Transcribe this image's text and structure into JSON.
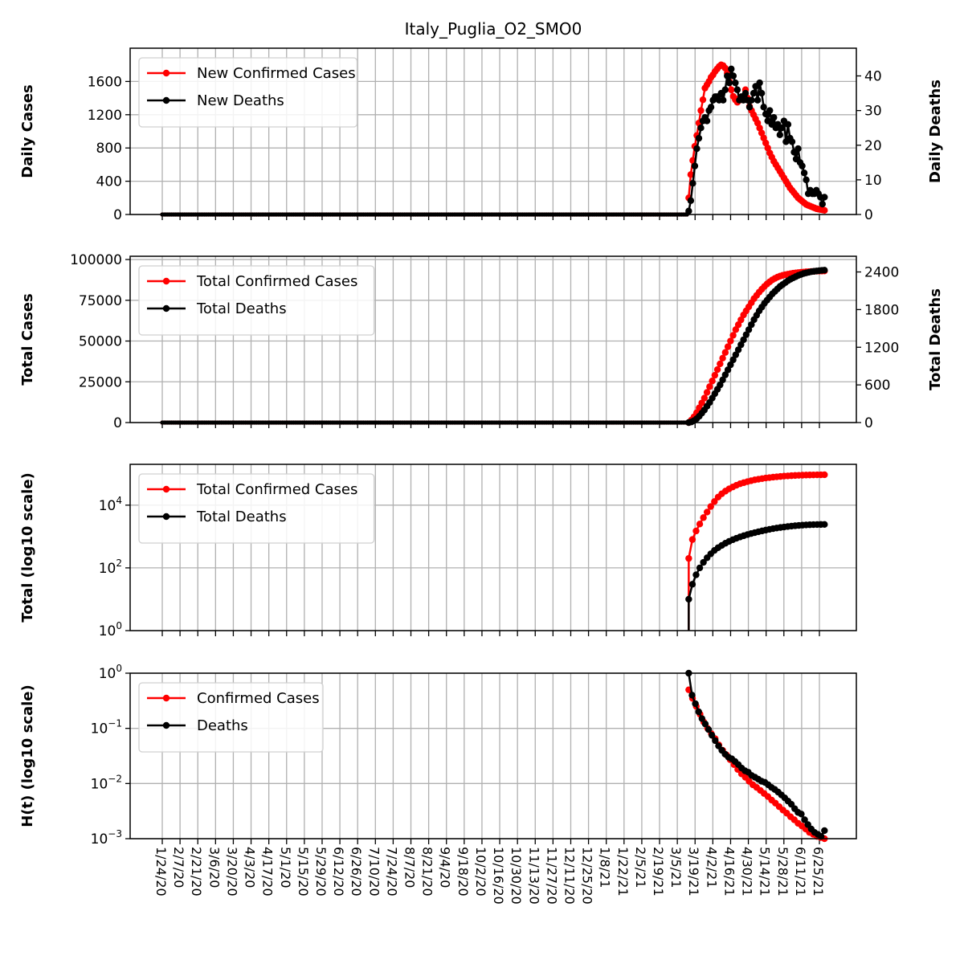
{
  "chart_data": {
    "type": "line",
    "title": "Italy_Puglia_O2_SMO0",
    "x_tick_labels": [
      "1/24/20",
      "2/7/20",
      "2/21/20",
      "3/6/20",
      "3/20/20",
      "4/3/20",
      "4/17/20",
      "5/1/20",
      "5/15/20",
      "5/29/20",
      "6/12/20",
      "6/26/20",
      "7/10/20",
      "7/24/20",
      "8/7/20",
      "8/21/20",
      "9/4/20",
      "9/18/20",
      "10/2/20",
      "10/16/20",
      "10/30/20",
      "11/13/20",
      "11/27/20",
      "12/11/20",
      "12/25/20",
      "1/8/21",
      "1/22/21",
      "2/5/21",
      "2/19/21",
      "3/5/21",
      "3/19/21",
      "4/2/21",
      "4/16/21",
      "4/30/21",
      "5/14/21",
      "5/28/21",
      "6/11/21",
      "6/25/21"
    ],
    "x_range": [
      "1/24/20",
      "6/29/21"
    ],
    "data_start": "3/14/21",
    "grid": true,
    "panels": [
      {
        "ylabel": "Daily Cases",
        "ylabel_right": "Daily Deaths",
        "ylim": [
          0,
          2000
        ],
        "ylim_right": [
          0,
          48
        ],
        "yticks": [
          0,
          400,
          800,
          1200,
          1600
        ],
        "yticks_right": [
          0,
          10,
          20,
          30,
          40
        ],
        "legend_position": "upper-left",
        "series": [
          {
            "name": "New Confirmed Cases",
            "color": "#ff0000",
            "axis": "left",
            "values": [
              200,
              480,
              650,
              820,
              950,
              1100,
              1250,
              1380,
              1520,
              1560,
              1600,
              1650,
              1680,
              1720,
              1750,
              1780,
              1800,
              1790,
              1760,
              1700,
              1600,
              1500,
              1420,
              1380,
              1350,
              1400,
              1380,
              1420,
              1500,
              1400,
              1300,
              1250,
              1200,
              1150,
              1100,
              1040,
              980,
              920,
              860,
              800,
              740,
              690,
              640,
              600,
              560,
              520,
              480,
              440,
              400,
              360,
              320,
              290,
              260,
              230,
              200,
              180,
              160,
              140,
              120,
              110,
              100,
              90,
              80,
              70,
              65,
              60,
              55,
              50
            ]
          },
          {
            "name": "New Deaths",
            "color": "#000000",
            "axis": "right",
            "values": [
              1,
              4,
              9,
              14,
              19,
              22,
              25,
              27,
              28,
              27,
              30,
              31,
              33,
              34,
              34,
              33,
              35,
              33,
              36,
              40,
              38,
              42,
              40,
              38,
              36,
              33,
              34,
              33,
              35,
              33,
              31,
              33,
              35,
              37,
              33,
              38,
              35,
              31,
              29,
              27,
              30,
              26,
              28,
              25,
              26,
              23,
              25,
              27,
              21,
              26,
              22,
              21,
              18,
              16,
              19,
              15,
              14,
              12,
              10,
              6,
              7,
              6,
              6,
              7,
              6,
              5,
              3,
              5
            ]
          }
        ]
      },
      {
        "ylabel": "Total Cases",
        "ylabel_right": "Total Deaths",
        "ylim": [
          0,
          102000
        ],
        "ylim_right": [
          0,
          2650
        ],
        "yticks": [
          0,
          25000,
          50000,
          75000,
          100000
        ],
        "yticks_right": [
          0,
          600,
          1200,
          1800,
          2400
        ],
        "legend_position": "upper-left",
        "series": [
          {
            "name": "Total Confirmed Cases",
            "color": "#ff0000",
            "axis": "left",
            "values": [
              0,
              1500,
              3500,
              6000,
              9000,
              12000,
              15000,
              18500,
              22000,
              25500,
              29000,
              32500,
              36000,
              39500,
              43000,
              46500,
              50000,
              53500,
              57000,
              60000,
              63000,
              66000,
              68500,
              71000,
              73500,
              76000,
              78000,
              80000,
              81800,
              83500,
              85000,
              86300,
              87500,
              88400,
              89200,
              89800,
              90300,
              90700,
              91000,
              91300,
              91600,
              91800,
              92000,
              92150,
              92300,
              92450,
              92550,
              92650,
              92750,
              92850,
              92900,
              92950,
              93000
            ]
          },
          {
            "name": "Total Deaths",
            "color": "#000000",
            "axis": "right",
            "values": [
              0,
              10,
              30,
              60,
              100,
              150,
              200,
              260,
              320,
              390,
              460,
              530,
              600,
              680,
              760,
              840,
              920,
              1000,
              1080,
              1160,
              1240,
              1320,
              1400,
              1480,
              1560,
              1640,
              1710,
              1780,
              1840,
              1900,
              1950,
              2000,
              2050,
              2090,
              2130,
              2170,
              2200,
              2230,
              2260,
              2285,
              2305,
              2325,
              2345,
              2360,
              2375,
              2385,
              2395,
              2405,
              2410,
              2415,
              2420,
              2425,
              2428
            ]
          }
        ]
      },
      {
        "ylabel": "Total (log10 scale)",
        "yscale": "log",
        "ylim": [
          1,
          200000
        ],
        "yticks": [
          "10^0",
          "10^2",
          "10^4"
        ],
        "legend_position": "upper-left",
        "series": [
          {
            "name": "Total Confirmed Cases",
            "color": "#ff0000",
            "values": [
              200,
              800,
              1500,
              2500,
              4000,
              6000,
              9000,
              13000,
              18000,
              23000,
              28000,
              33000,
              38000,
              43000,
              48000,
              52000,
              56000,
              60000,
              64000,
              67000,
              70000,
              73000,
              75500,
              78000,
              80000,
              82000,
              84000,
              85500,
              87000,
              88200,
              89300,
              90200,
              91000,
              91600,
              92100,
              92500,
              92800,
              93000
            ]
          },
          {
            "name": "Total Deaths",
            "color": "#000000",
            "values": [
              10,
              30,
              60,
              100,
              150,
              210,
              280,
              360,
              440,
              520,
              610,
              700,
              790,
              880,
              970,
              1060,
              1150,
              1240,
              1330,
              1420,
              1510,
              1600,
              1690,
              1780,
              1860,
              1940,
              2010,
              2080,
              2140,
              2200,
              2250,
              2300,
              2340,
              2370,
              2395,
              2410,
              2420,
              2428
            ]
          }
        ]
      },
      {
        "ylabel": "H(t) (log10 scale)",
        "yscale": "log",
        "ylim": [
          0.001,
          1
        ],
        "yticks": [
          "10^-3",
          "10^-2",
          "10^-1",
          "10^0"
        ],
        "legend_position": "upper-left",
        "series": [
          {
            "name": "Confirmed Cases",
            "color": "#ff0000",
            "values": [
              0.5,
              0.35,
              0.25,
              0.18,
              0.13,
              0.1,
              0.08,
              0.065,
              0.05,
              0.04,
              0.033,
              0.027,
              0.022,
              0.018,
              0.015,
              0.013,
              0.011,
              0.0095,
              0.0085,
              0.0075,
              0.0066,
              0.0058,
              0.005,
              0.0044,
              0.0038,
              0.0033,
              0.0029,
              0.0025,
              0.0022,
              0.0019,
              0.0017,
              0.0015,
              0.0013,
              0.0012,
              0.0011,
              0.00105,
              0.001
            ]
          },
          {
            "name": "Deaths",
            "color": "#000000",
            "values": [
              1.0,
              0.4,
              0.28,
              0.2,
              0.15,
              0.12,
              0.095,
              0.075,
              0.06,
              0.048,
              0.04,
              0.034,
              0.03,
              0.028,
              0.025,
              0.022,
              0.019,
              0.017,
              0.016,
              0.014,
              0.013,
              0.012,
              0.011,
              0.0105,
              0.0095,
              0.0085,
              0.0078,
              0.007,
              0.0062,
              0.0055,
              0.0048,
              0.0042,
              0.0035,
              0.003,
              0.0028,
              0.0022,
              0.0018,
              0.0015,
              0.0013,
              0.0012,
              0.0011,
              0.0014
            ]
          }
        ]
      }
    ]
  }
}
